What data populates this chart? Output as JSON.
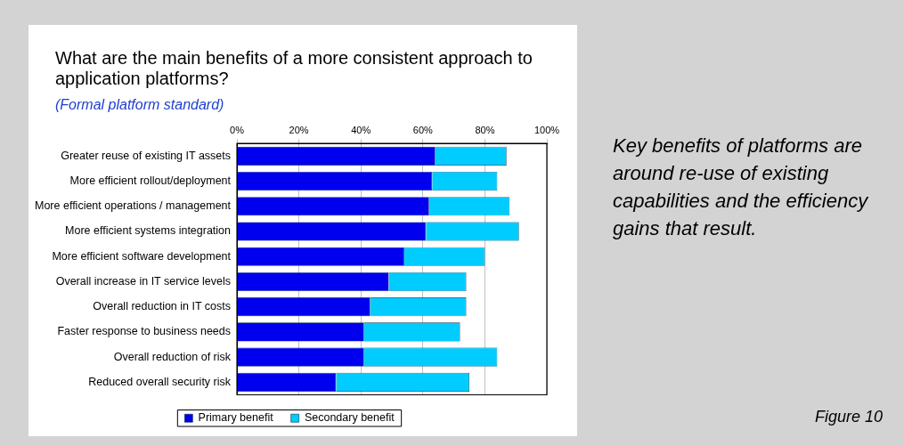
{
  "chart_data": {
    "type": "bar",
    "orientation": "horizontal",
    "stacked": true,
    "title": "What are the main benefits of a more consistent approach to application platforms?",
    "subtitle": "(Formal platform standard)",
    "categories": [
      "Greater reuse of existing IT assets",
      "More efficient rollout/deployment",
      "More efficient operations / management",
      "More efficient systems integration",
      "More efficient software development",
      "Overall increase in IT service levels",
      "Overall reduction in IT costs",
      "Faster response to business needs",
      "Overall reduction of risk",
      "Reduced overall security risk"
    ],
    "series": [
      {
        "name": "Primary benefit",
        "color": "#0000ee",
        "values": [
          64,
          63,
          62,
          61,
          54,
          49,
          43,
          41,
          41,
          32
        ]
      },
      {
        "name": "Secondary benefit",
        "color": "#00ccff",
        "values": [
          23,
          21,
          26,
          30,
          26,
          25,
          31,
          31,
          43,
          43
        ]
      }
    ],
    "xlim": [
      0,
      100
    ],
    "xticks": [
      {
        "value": 0,
        "label": "0%"
      },
      {
        "value": 20,
        "label": "20%"
      },
      {
        "value": 40,
        "label": "40%"
      },
      {
        "value": 60,
        "label": "60%"
      },
      {
        "value": 80,
        "label": "80%"
      },
      {
        "value": 100,
        "label": "100%"
      }
    ],
    "grid": "x",
    "legend": "bottom",
    "annotations": [
      "Key benefits of platforms are around re-use of existing capabilities and the efficiency gains that result.",
      "Figure 10"
    ]
  }
}
